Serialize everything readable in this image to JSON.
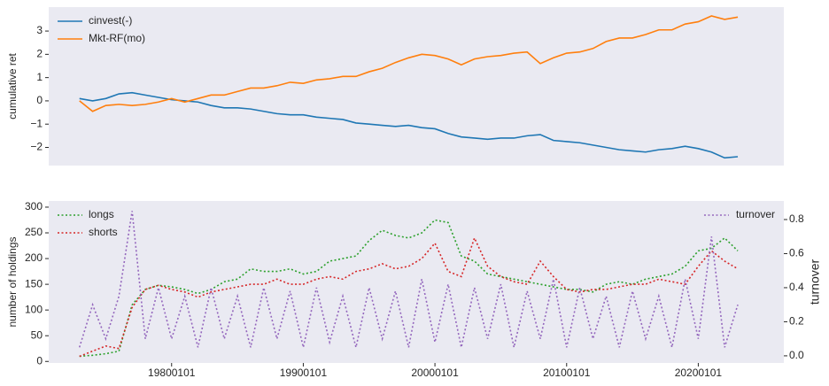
{
  "chart_data": [
    {
      "type": "line",
      "y_label": "cumulative ret",
      "x": [
        "19730101",
        "19740101",
        "19750101",
        "19760101",
        "19770101",
        "19780101",
        "19790101",
        "19800101",
        "19810101",
        "19820101",
        "19830101",
        "19840101",
        "19850101",
        "19860101",
        "19870101",
        "19880101",
        "19890101",
        "19900101",
        "19910101",
        "19920101",
        "19930101",
        "19940101",
        "19950101",
        "19960101",
        "19970101",
        "19980101",
        "19990101",
        "20000101",
        "20010101",
        "20020101",
        "20030101",
        "20040101",
        "20050101",
        "20060101",
        "20070101",
        "20080101",
        "20090101",
        "20100101",
        "20110101",
        "20120101",
        "20130101",
        "20140101",
        "20150101",
        "20160101",
        "20170101",
        "20180101",
        "20190101",
        "20200101",
        "20210101",
        "20220101",
        "20230101"
      ],
      "series": [
        {
          "name": "cinvest(-)",
          "color": "#1f77b4",
          "values": [
            0.1,
            0.0,
            0.1,
            0.3,
            0.35,
            0.25,
            0.15,
            0.05,
            0.0,
            -0.05,
            -0.2,
            -0.3,
            -0.3,
            -0.35,
            -0.45,
            -0.55,
            -0.6,
            -0.6,
            -0.7,
            -0.75,
            -0.8,
            -0.95,
            -1.0,
            -1.05,
            -1.1,
            -1.05,
            -1.15,
            -1.2,
            -1.4,
            -1.55,
            -1.6,
            -1.65,
            -1.6,
            -1.6,
            -1.5,
            -1.45,
            -1.7,
            -1.75,
            -1.8,
            -1.9,
            -2.0,
            -2.1,
            -2.15,
            -2.2,
            -2.1,
            -2.05,
            -1.95,
            -2.05,
            -2.2,
            -2.45,
            -2.4
          ]
        },
        {
          "name": "Mkt-RF(mo)",
          "color": "#ff7f0e",
          "values": [
            0.0,
            -0.45,
            -0.2,
            -0.15,
            -0.2,
            -0.15,
            -0.05,
            0.1,
            -0.05,
            0.1,
            0.25,
            0.25,
            0.4,
            0.55,
            0.55,
            0.65,
            0.8,
            0.75,
            0.9,
            0.95,
            1.05,
            1.05,
            1.25,
            1.4,
            1.65,
            1.85,
            2.0,
            1.95,
            1.8,
            1.55,
            1.8,
            1.9,
            1.95,
            2.05,
            2.1,
            1.6,
            1.85,
            2.05,
            2.1,
            2.25,
            2.55,
            2.7,
            2.7,
            2.85,
            3.05,
            3.05,
            3.3,
            3.4,
            3.65,
            3.5,
            3.6
          ]
        }
      ],
      "xlim": [
        "19700901",
        "20260701"
      ],
      "ylim": [
        -2.78,
        4.03
      ],
      "yticks": [
        {
          "value": -2,
          "label": "−2"
        },
        {
          "value": -1,
          "label": "−1"
        },
        0,
        1,
        2,
        3
      ],
      "grid": false,
      "legend": "upper left"
    },
    {
      "type": "line",
      "y_label": "number of holdings",
      "y2_label": "turnover",
      "linestyle": "dotted",
      "x": [
        "19730101",
        "19740101",
        "19750101",
        "19760101",
        "19770101",
        "19780101",
        "19790101",
        "19800101",
        "19810101",
        "19820101",
        "19830101",
        "19840101",
        "19850101",
        "19860101",
        "19870101",
        "19880101",
        "19890101",
        "19900101",
        "19910101",
        "19920101",
        "19930101",
        "19940101",
        "19950101",
        "19960101",
        "19970101",
        "19980101",
        "19990101",
        "20000101",
        "20010101",
        "20020101",
        "20030101",
        "20040101",
        "20050101",
        "20060101",
        "20070101",
        "20080101",
        "20090101",
        "20100101",
        "20110101",
        "20120101",
        "20130101",
        "20140101",
        "20150101",
        "20160101",
        "20170101",
        "20180101",
        "20190101",
        "20200101",
        "20210101",
        "20220101",
        "20230101"
      ],
      "series": [
        {
          "name": "longs",
          "color": "#2ca02c",
          "values": [
            10,
            12,
            15,
            20,
            110,
            140,
            148,
            145,
            140,
            132,
            140,
            155,
            160,
            180,
            175,
            175,
            180,
            170,
            175,
            195,
            200,
            205,
            235,
            255,
            245,
            240,
            250,
            275,
            270,
            205,
            195,
            170,
            165,
            160,
            155,
            150,
            145,
            140,
            140,
            135,
            150,
            155,
            150,
            160,
            165,
            170,
            185,
            215,
            220,
            240,
            215
          ]
        },
        {
          "name": "shorts",
          "color": "#d62728",
          "values": [
            10,
            20,
            30,
            25,
            105,
            140,
            148,
            140,
            135,
            125,
            135,
            140,
            145,
            150,
            150,
            160,
            150,
            150,
            160,
            165,
            160,
            175,
            180,
            190,
            180,
            185,
            200,
            230,
            175,
            165,
            240,
            185,
            165,
            155,
            150,
            195,
            165,
            140,
            135,
            140,
            140,
            145,
            150,
            150,
            160,
            155,
            150,
            185,
            215,
            195,
            180
          ]
        },
        {
          "name": "turnover",
          "color": "#9467bd",
          "axis": "y2",
          "values": [
            0.05,
            0.3,
            0.1,
            0.35,
            0.85,
            0.1,
            0.4,
            0.1,
            0.35,
            0.05,
            0.4,
            0.1,
            0.35,
            0.05,
            0.4,
            0.1,
            0.38,
            0.05,
            0.4,
            0.08,
            0.35,
            0.05,
            0.4,
            0.1,
            0.38,
            0.05,
            0.45,
            0.08,
            0.42,
            0.05,
            0.4,
            0.1,
            0.42,
            0.05,
            0.38,
            0.1,
            0.45,
            0.05,
            0.4,
            0.1,
            0.35,
            0.05,
            0.38,
            0.1,
            0.35,
            0.05,
            0.45,
            0.1,
            0.7,
            0.05,
            0.3
          ]
        }
      ],
      "xlim": [
        "19700901",
        "20260701"
      ],
      "xticks": [
        "19800101",
        "19900101",
        "20000101",
        "20100101",
        "20200101"
      ],
      "ylim": [
        -3,
        312
      ],
      "yticks": [
        0,
        50,
        100,
        150,
        200,
        250,
        300
      ],
      "y2lim": [
        -0.042,
        0.909
      ],
      "y2ticks": [
        {
          "value": 0,
          "label": "0.0"
        },
        0.2,
        0.4,
        0.6,
        0.8
      ],
      "grid": false,
      "legend": "upper left",
      "legend2": "upper right"
    }
  ]
}
